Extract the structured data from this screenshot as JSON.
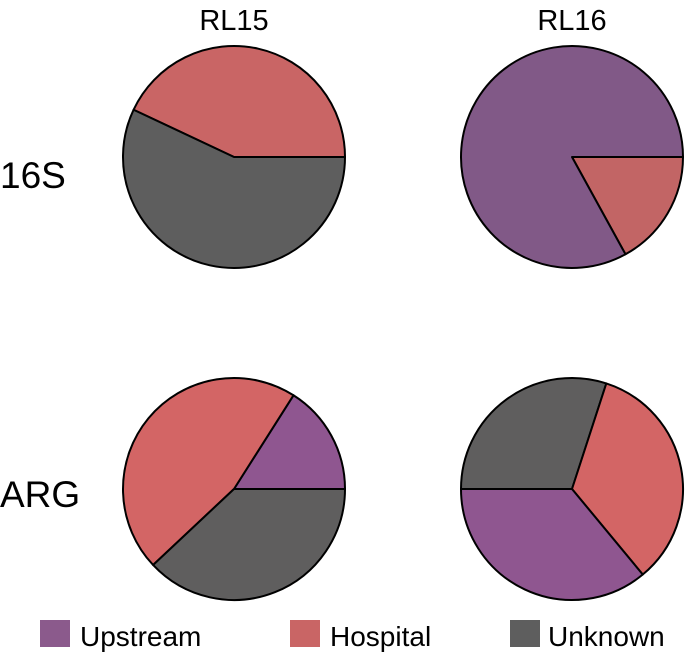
{
  "chart_data": {
    "type": "pie",
    "title": "",
    "columns": [
      "RL15",
      "RL16"
    ],
    "rows": [
      "16S",
      "ARG"
    ],
    "legend": {
      "placement": "bottom",
      "entries": [
        {
          "name": "Upstream",
          "color": "#8b5a8c"
        },
        {
          "name": "Hospital",
          "color": "#c96565"
        },
        {
          "name": "Unknown",
          "color": "#5e5e5e"
        }
      ]
    },
    "pies": [
      {
        "row": "16S",
        "column": "RL15",
        "slices": [
          {
            "category": "Upstream",
            "value": 0,
            "color": "#8b5a8c"
          },
          {
            "category": "Hospital",
            "value": 43,
            "color": "#c96565"
          },
          {
            "category": "Unknown",
            "value": 57,
            "color": "#5e5e5e"
          }
        ]
      },
      {
        "row": "16S",
        "column": "RL16",
        "slices": [
          {
            "category": "Upstream",
            "value": 83,
            "color": "#815987"
          },
          {
            "category": "Hospital",
            "value": 17,
            "color": "#c26565"
          },
          {
            "category": "Unknown",
            "value": 0,
            "color": "#5e5e5e"
          }
        ]
      },
      {
        "row": "ARG",
        "column": "RL15",
        "slices": [
          {
            "category": "Upstream",
            "value": 16,
            "color": "#8f5690"
          },
          {
            "category": "Hospital",
            "value": 46,
            "color": "#d36565"
          },
          {
            "category": "Unknown",
            "value": 38,
            "color": "#5f5e5e"
          }
        ]
      },
      {
        "row": "ARG",
        "column": "RL16",
        "slices": [
          {
            "category": "Upstream",
            "value": 36,
            "color": "#8f5690"
          },
          {
            "category": "Hospital",
            "value": 34,
            "color": "#d36565"
          },
          {
            "category": "Unknown",
            "value": 30,
            "color": "#5f5e5e"
          }
        ]
      }
    ]
  }
}
